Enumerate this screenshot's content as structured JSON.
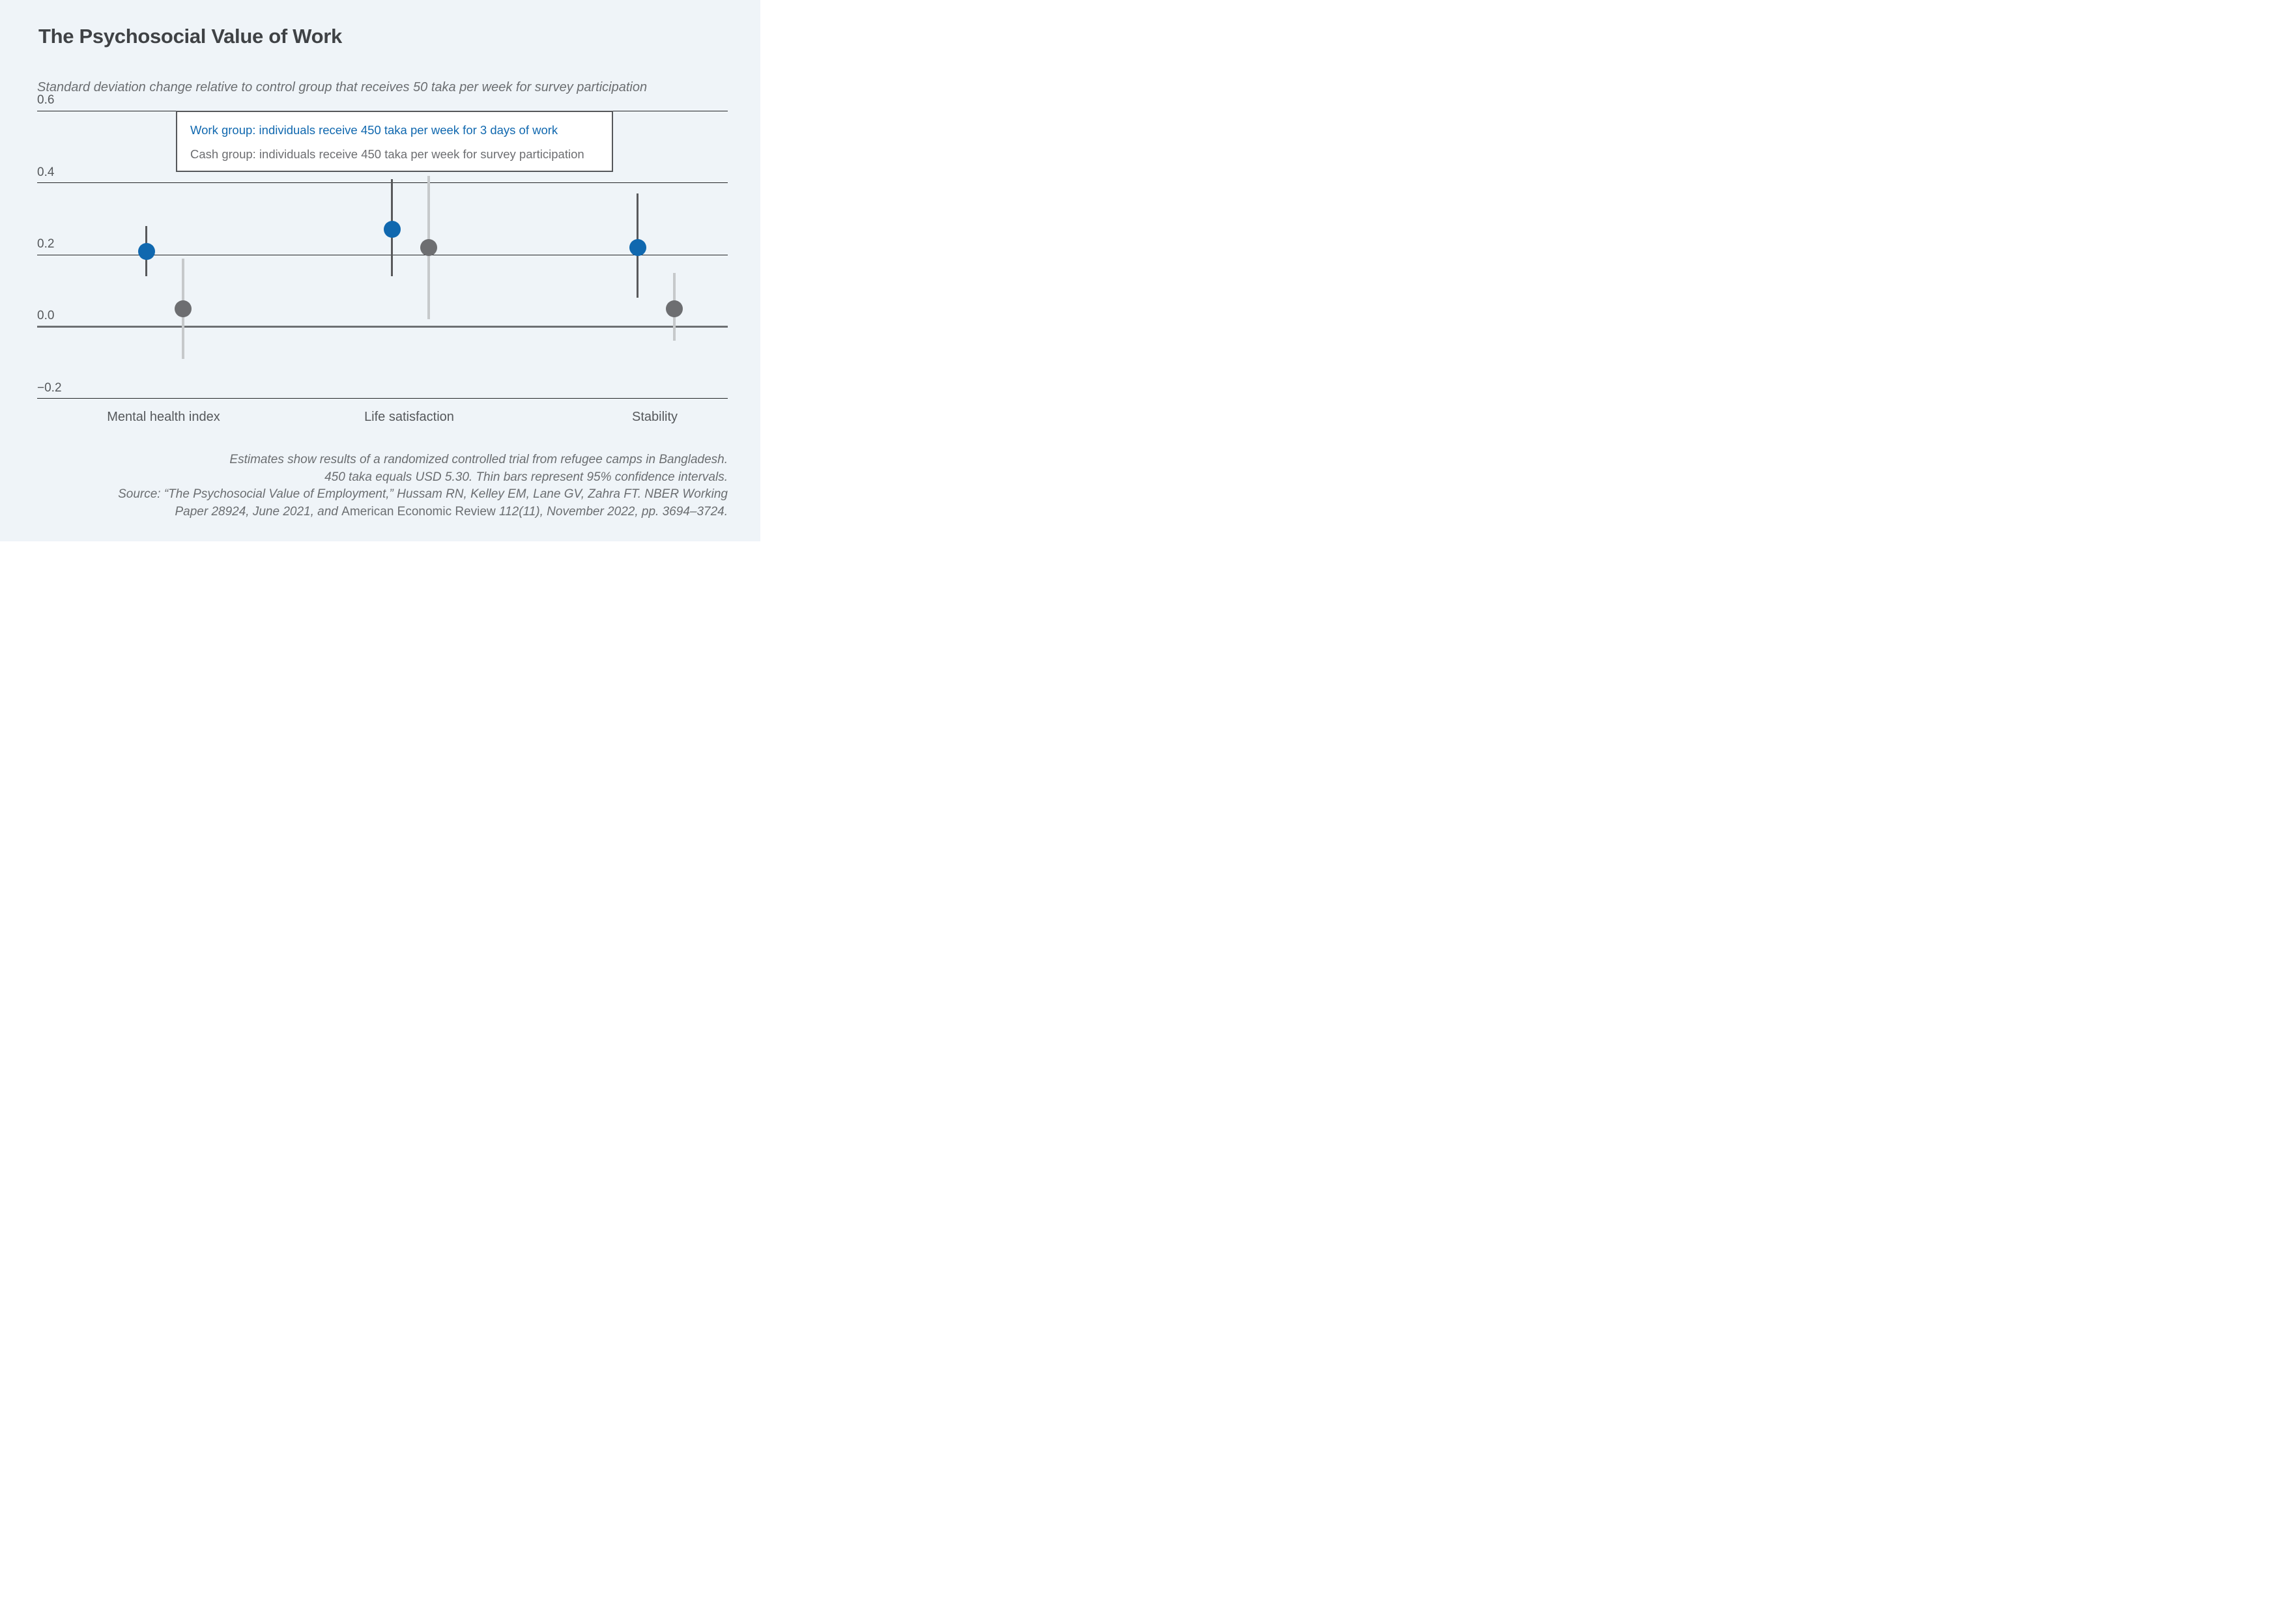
{
  "page": {
    "background": "#eff4f8",
    "title": "The Psychosocial Value of Work",
    "subtitle": "Standard deviation change relative to control group that receives 50 taka per week for survey participation"
  },
  "legend": {
    "work_label": "Work group: individuals receive 450 taka per week for 3 days of work",
    "cash_label": "Cash group: individuals receive 450 taka per week for survey participation",
    "work_color": "#1068af",
    "cash_color": "#6d6e71"
  },
  "chart_data": {
    "type": "scatter",
    "title": "The Psychosocial Value of Work",
    "ylabel": "Standard deviation change relative to control group that receives 50 taka per week for survey participation",
    "categories": [
      "Mental health index",
      "Life satisfaction",
      "Stability"
    ],
    "ytick_labels": [
      "0.6",
      "0.4",
      "0.2",
      "0.0",
      "−0.2"
    ],
    "ytick_values": [
      0.6,
      0.4,
      0.2,
      0.0,
      -0.2
    ],
    "ylim": [
      -0.28,
      0.62
    ],
    "grid": "horizontal",
    "legend_position": "top-center-box",
    "series": [
      {
        "name": "Work group: individuals receive 450 taka per week for 3 days of work",
        "short_name": "Work group",
        "color": "#1068af",
        "ci_color": "#58595b",
        "values": [
          0.21,
          0.27,
          0.22
        ],
        "ci_low": [
          0.14,
          0.14,
          0.08
        ],
        "ci_high": [
          0.28,
          0.41,
          0.37
        ]
      },
      {
        "name": "Cash group: individuals receive 450 taka per week for survey participation",
        "short_name": "Cash group",
        "color": "#6d6e71",
        "ci_color": "#c6c9cb",
        "values": [
          0.05,
          0.22,
          0.05
        ],
        "ci_low": [
          -0.09,
          0.02,
          -0.04
        ],
        "ci_high": [
          0.19,
          0.42,
          0.15
        ]
      }
    ],
    "ci_note": "Thin bars represent 95% confidence intervals"
  },
  "footer": {
    "lines": [
      [
        {
          "text": "Estimates show results of a randomized controlled trial from refugee camps in Bangladesh.",
          "italic": true
        }
      ],
      [
        {
          "text": "450 taka equals USD 5.30. Thin bars represent 95% confidence intervals.",
          "italic": true
        }
      ],
      [
        {
          "text": "Source: “The Psychosocial Value of Employment,” Hussam RN, Kelley EM, Lane GV, Zahra FT. NBER Working",
          "italic": true
        }
      ],
      [
        {
          "text": "Paper 28924, June 2021, and ",
          "italic": true
        },
        {
          "text": "American Economic Review",
          "italic": false
        },
        {
          "text": " 112(11), November 2022, pp. 3694–3724.",
          "italic": true
        }
      ]
    ]
  }
}
